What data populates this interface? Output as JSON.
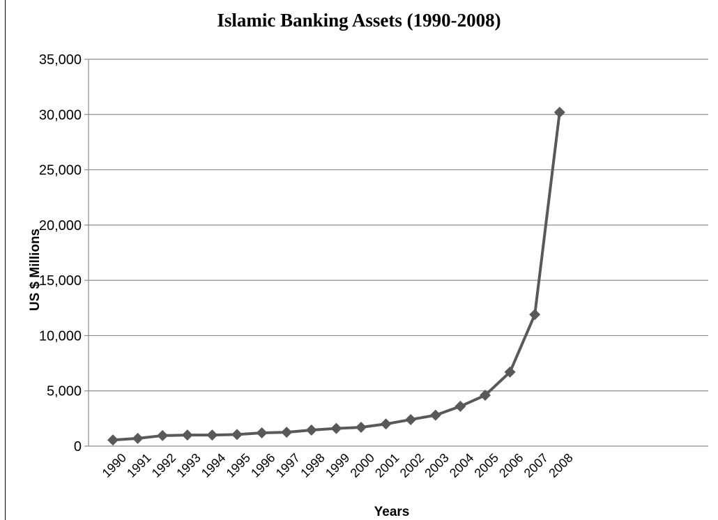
{
  "chart_data": {
    "type": "line",
    "title": "Islamic Banking Assets (1990-2008)",
    "xlabel": "Years",
    "ylabel": "US $ Millions",
    "ylim": [
      0,
      35000
    ],
    "yticks": [
      "0",
      "5,000",
      "10,000",
      "15,000",
      "20,000",
      "25,000",
      "30,000",
      "35,000"
    ],
    "categories": [
      "1990",
      "1991",
      "1992",
      "1993",
      "1994",
      "1995",
      "1996",
      "1997",
      "1998",
      "1999",
      "2000",
      "2001",
      "2002",
      "2003",
      "2004",
      "2005",
      "2006",
      "2007",
      "2008"
    ],
    "series": [
      {
        "values": [
          550,
          700,
          950,
          1000,
          1000,
          1050,
          1200,
          1250,
          1450,
          1600,
          1700,
          2000,
          2400,
          2800,
          3600,
          4600,
          6700,
          11900,
          30200
        ],
        "color": "#595959",
        "marker": "diamond"
      }
    ],
    "grid": true,
    "legend": "none"
  }
}
